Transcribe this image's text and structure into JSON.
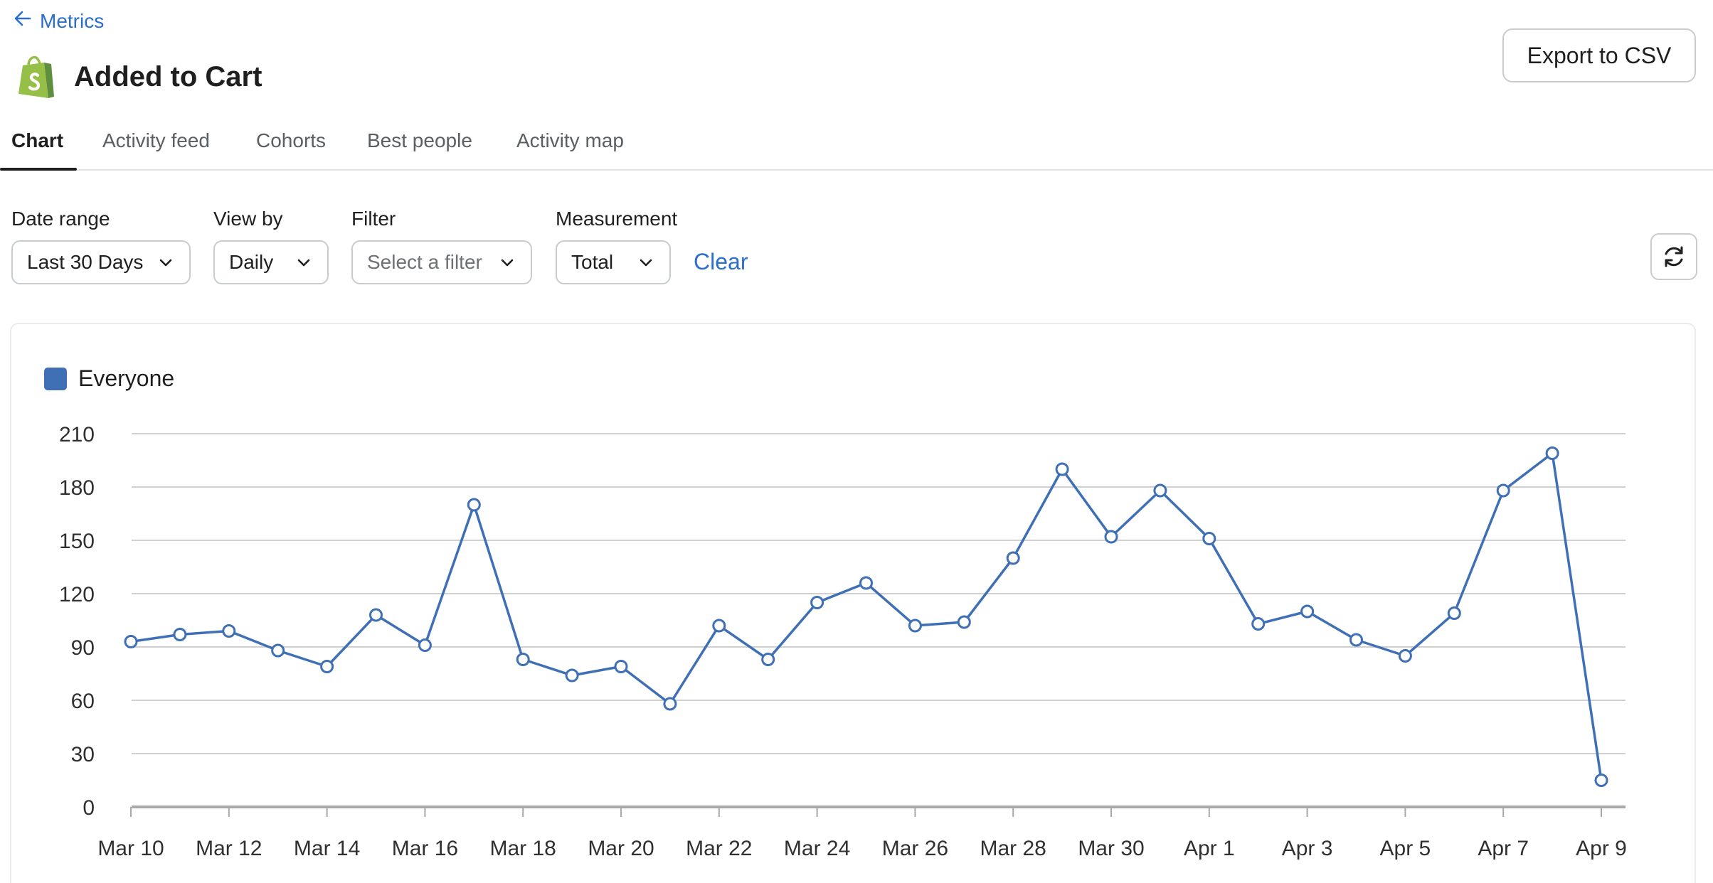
{
  "nav": {
    "back_label": "Metrics"
  },
  "header": {
    "title": "Added to Cart",
    "export_label": "Export to CSV"
  },
  "tabs": [
    {
      "label": "Chart",
      "active": true
    },
    {
      "label": "Activity feed",
      "active": false
    },
    {
      "label": "Cohorts",
      "active": false
    },
    {
      "label": "Best people",
      "active": false
    },
    {
      "label": "Activity map",
      "active": false
    }
  ],
  "controls": {
    "date_range": {
      "label": "Date range",
      "value": "Last 30 Days"
    },
    "view_by": {
      "label": "View by",
      "value": "Daily"
    },
    "filter": {
      "label": "Filter",
      "placeholder": "Select a filter"
    },
    "measurement": {
      "label": "Measurement",
      "value": "Total"
    },
    "clear_label": "Clear"
  },
  "colors": {
    "accent": "#2c6ecb",
    "series": "#3f6fb5",
    "logo_green": "#95bf47",
    "logo_dark": "#5e8e3e"
  },
  "icons": {
    "back": "arrow-left-icon",
    "logo": "shopify-bag-icon",
    "dropdown": "chevron-down-icon",
    "refresh": "refresh-icon"
  },
  "chart_data": {
    "type": "line",
    "legend_position": "top-left",
    "grid": true,
    "ylim": [
      0,
      210
    ],
    "yticks": [
      0,
      30,
      60,
      90,
      120,
      150,
      180,
      210
    ],
    "x": [
      "Mar 10",
      "Mar 11",
      "Mar 12",
      "Mar 13",
      "Mar 14",
      "Mar 15",
      "Mar 16",
      "Mar 17",
      "Mar 18",
      "Mar 19",
      "Mar 20",
      "Mar 21",
      "Mar 22",
      "Mar 23",
      "Mar 24",
      "Mar 25",
      "Mar 26",
      "Mar 27",
      "Mar 28",
      "Mar 29",
      "Mar 30",
      "Mar 31",
      "Apr 1",
      "Apr 2",
      "Apr 3",
      "Apr 4",
      "Apr 5",
      "Apr 6",
      "Apr 7",
      "Apr 8",
      "Apr 9"
    ],
    "xtick_labels": [
      "Mar 10",
      "Mar 12",
      "Mar 14",
      "Mar 16",
      "Mar 18",
      "Mar 20",
      "Mar 22",
      "Mar 24",
      "Mar 26",
      "Mar 28",
      "Mar 30",
      "Apr 1",
      "Apr 3",
      "Apr 5",
      "Apr 7",
      "Apr 9"
    ],
    "series": [
      {
        "name": "Everyone",
        "values": [
          93,
          97,
          99,
          88,
          79,
          108,
          91,
          170,
          83,
          74,
          79,
          58,
          102,
          83,
          115,
          126,
          102,
          104,
          140,
          190,
          152,
          178,
          151,
          103,
          110,
          94,
          85,
          109,
          178,
          199,
          15
        ]
      }
    ]
  }
}
